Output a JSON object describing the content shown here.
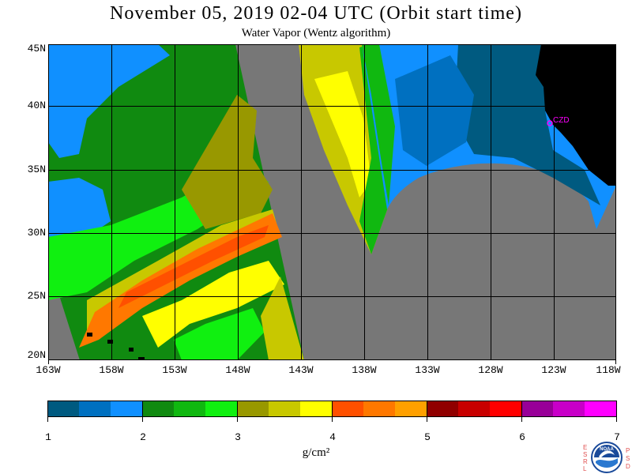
{
  "header": {
    "title": "November 05, 2019  02-04 UTC  (Orbit start time)",
    "subtitle": "Water Vapor (Wentz algorithm)"
  },
  "map": {
    "lat_labels": [
      "45N",
      "40N",
      "35N",
      "30N",
      "25N",
      "20N"
    ],
    "lat_values": [
      45,
      40,
      35,
      30,
      25,
      20
    ],
    "lon_labels": [
      "163W",
      "158W",
      "153W",
      "148W",
      "143W",
      "138W",
      "133W",
      "128W",
      "123W",
      "118W"
    ],
    "lon_values": [
      -163,
      -158,
      -153,
      -148,
      -143,
      -138,
      -133,
      -128,
      -123,
      -118
    ],
    "station_label": "CZD",
    "colors": {
      "no_data": "#777777",
      "land": "#000000",
      "station": "#ff00ff"
    }
  },
  "colorbar": {
    "tick_labels": [
      "1",
      "2",
      "3",
      "4",
      "5",
      "6",
      "7"
    ],
    "units": "g/cm²",
    "range": [
      1,
      7
    ],
    "colors": [
      "#005a80",
      "#0070c0",
      "#1090ff",
      "#108a10",
      "#10b810",
      "#10f010",
      "#989800",
      "#c8c800",
      "#ffff00",
      "#ff5000",
      "#ff7800",
      "#ffa000",
      "#900000",
      "#c80000",
      "#ff0000",
      "#980098",
      "#c800c8",
      "#ff00ff"
    ]
  },
  "logo": {
    "left_letters": [
      "E",
      "S",
      "R",
      "L"
    ],
    "right_letters": [
      "P",
      "S",
      "D"
    ],
    "center_text": "NOAA"
  }
}
